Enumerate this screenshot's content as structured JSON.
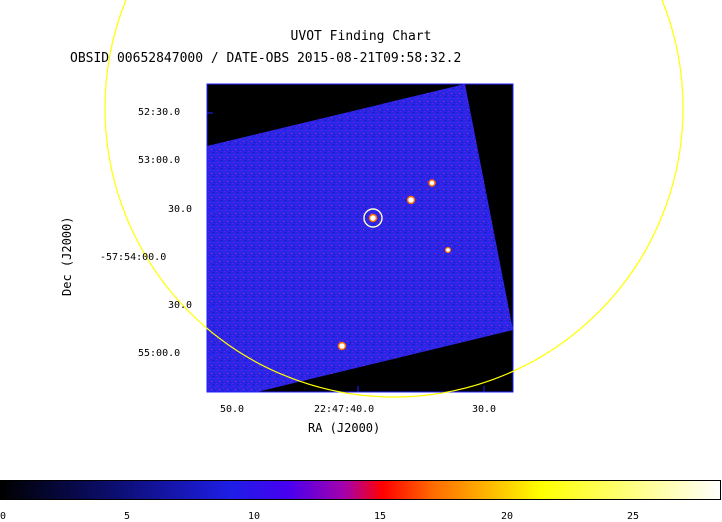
{
  "chart": {
    "title": "UVOT Finding Chart",
    "subtitle": "OBSID 00652847000 / DATE-OBS 2015-08-21T09:58:32.2",
    "xlabel": "RA (J2000)",
    "ylabel": "Dec (J2000)",
    "y_ticks": [
      "52:30.0",
      "53:00.0",
      "30.0",
      "-57:54:00.0",
      "30.0",
      "55:00.0"
    ],
    "x_ticks": [
      "50.0",
      "22:47:40.0",
      "30.0"
    ],
    "colorbar_ticks": [
      "0",
      "5",
      "10",
      "15",
      "20",
      "25"
    ]
  },
  "colors": {
    "frame": "#1f1fff",
    "background": "#000000",
    "sky": "#2a24e6",
    "overlay_circle": "#ffff00",
    "target_marker": "#ffffcc",
    "colormap": [
      "#000000",
      "#0d0f78",
      "#1e1ee6",
      "#4800f0",
      "#a800a8",
      "#ff0000",
      "#ff6a00",
      "#ffff00",
      "#ffffff"
    ]
  }
}
